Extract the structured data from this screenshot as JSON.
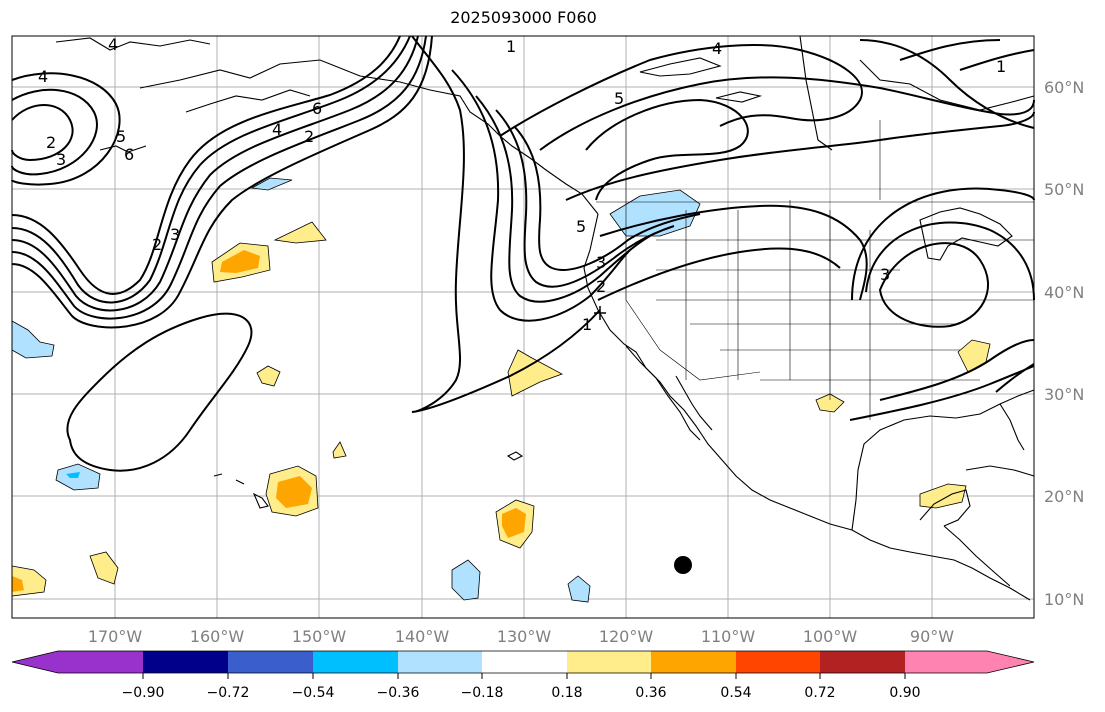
{
  "title": "2025093000 F060",
  "map": {
    "lon_labels": [
      "170°W",
      "160°W",
      "150°W",
      "140°W",
      "130°W",
      "120°W",
      "110°W",
      "100°W",
      "90°W"
    ],
    "lat_labels": [
      "60°N",
      "50°N",
      "40°N",
      "30°N",
      "20°N",
      "10°N"
    ]
  },
  "contour_labels": [
    "4",
    "2",
    "3",
    "5",
    "6",
    "4",
    "2",
    "3",
    "2",
    "5",
    "4",
    "5",
    "2",
    "3",
    "1",
    "3",
    "1",
    "4",
    "6",
    "1"
  ],
  "colorbar": {
    "ticks": [
      "−0.90",
      "−0.72",
      "−0.54",
      "−0.36",
      "−0.18",
      "0.18",
      "0.36",
      "0.54",
      "0.72",
      "0.90"
    ],
    "colors": [
      "#9932cc",
      "#00008b",
      "#3a5fcd",
      "#00bfff",
      "#b0e2ff",
      "#ffffff",
      "#ffec8b",
      "#ffa500",
      "#ff4500",
      "#b22222",
      "#ff83b0"
    ]
  },
  "colors": {
    "pos_light": "#ffec8b",
    "pos_mid": "#ffa500",
    "neg_light": "#b0e2ff",
    "neg_mid": "#00bfff",
    "grid": "#b0b0b0",
    "axis_label": "#808080"
  }
}
